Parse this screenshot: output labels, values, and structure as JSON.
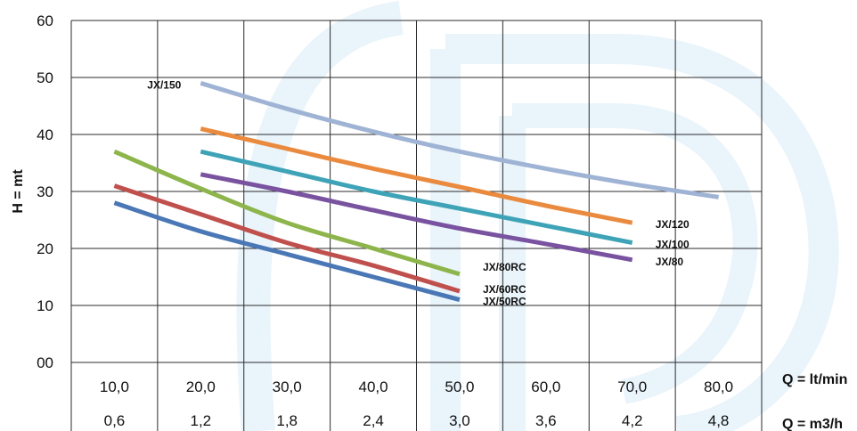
{
  "chart_data": {
    "type": "line",
    "ylabel": "H = mt",
    "x_unit_label": "Q = lt/min",
    "x2_unit_label": "Q = m3/h",
    "y_ticks": [
      "60",
      "50",
      "40",
      "30",
      "20",
      "10",
      "00"
    ],
    "ylim": [
      0,
      60
    ],
    "x_categories": [
      "10,0",
      "20,0",
      "30,0",
      "40,0",
      "50,0",
      "60,0",
      "70,0",
      "80,0"
    ],
    "x2_categories": [
      "0,6",
      "1,2",
      "1,8",
      "2,4",
      "3,0",
      "3,6",
      "4,2",
      "4,8"
    ],
    "grid": true,
    "series": [
      {
        "name": "JX/150",
        "color": "#9fb3d4",
        "x": [
          20,
          30,
          40,
          50,
          60,
          70,
          80
        ],
        "y": [
          49,
          44.5,
          40.5,
          37,
          34,
          31.3,
          29
        ]
      },
      {
        "name": "JX/120",
        "color": "#ea8a3e",
        "x": [
          20,
          30,
          40,
          50,
          60,
          70
        ],
        "y": [
          41,
          37.5,
          34,
          30.8,
          27.5,
          24.5
        ]
      },
      {
        "name": "JX/100",
        "color": "#3fa3b8",
        "x": [
          20,
          30,
          40,
          50,
          60,
          70
        ],
        "y": [
          37,
          33.5,
          30,
          27,
          24,
          21
        ]
      },
      {
        "name": "JX/80",
        "color": "#7952a0",
        "x": [
          20,
          30,
          40,
          50,
          60,
          70
        ],
        "y": [
          33,
          30,
          26.7,
          23.5,
          20.8,
          18
        ]
      },
      {
        "name": "JX/80RC",
        "color": "#8db54c",
        "x": [
          10,
          20,
          30,
          40,
          50
        ],
        "y": [
          37,
          30.5,
          24.5,
          20,
          15.5
        ]
      },
      {
        "name": "JX/60RC",
        "color": "#c0504d",
        "x": [
          10,
          20,
          30,
          40,
          50
        ],
        "y": [
          31,
          26,
          21,
          17,
          12.5
        ]
      },
      {
        "name": "JX/50RC",
        "color": "#4a77b5",
        "x": [
          10,
          20,
          30,
          40,
          50
        ],
        "y": [
          28,
          23,
          19,
          15,
          11
        ]
      }
    ]
  }
}
